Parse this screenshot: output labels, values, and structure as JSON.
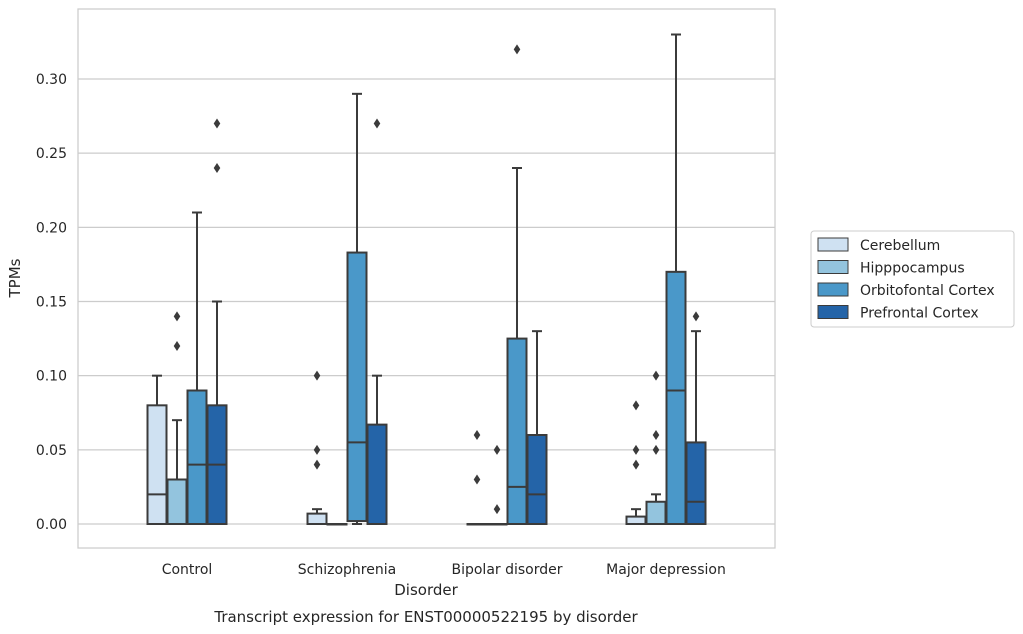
{
  "chart_data": {
    "type": "box",
    "xlabel": "Disorder",
    "ylabel": "TPMs",
    "caption": "Transcript expression for ENST00000522195 by disorder",
    "ylim": [
      -0.016,
      0.345
    ],
    "yticks": [
      "0.00",
      "0.05",
      "0.10",
      "0.15",
      "0.20",
      "0.25",
      "0.30"
    ],
    "grid": "horizontal",
    "legend_position": "right",
    "categories": [
      "Control",
      "Schizophrenia",
      "Bipolar disorder",
      "Major depression"
    ],
    "series": [
      {
        "name": "Cerebellum",
        "color": "#cfe1f2",
        "boxes": [
          {
            "low": 0.0,
            "q1": 0.0,
            "median": 0.02,
            "q3": 0.08,
            "high": 0.1,
            "outliers": []
          },
          {
            "low": 0.0,
            "q1": 0.0,
            "median": 0.0,
            "q3": 0.007,
            "high": 0.01,
            "outliers": [
              0.04,
              0.05,
              0.1
            ]
          },
          {
            "low": 0.0,
            "q1": 0.0,
            "median": 0.0,
            "q3": 0.0,
            "high": 0.0,
            "outliers": [
              0.03,
              0.06
            ]
          },
          {
            "low": 0.0,
            "q1": 0.0,
            "median": 0.0,
            "q3": 0.005,
            "high": 0.01,
            "outliers": [
              0.04,
              0.05,
              0.08
            ]
          }
        ]
      },
      {
        "name": "Hipppocampus",
        "color": "#93c4de",
        "boxes": [
          {
            "low": 0.0,
            "q1": 0.0,
            "median": 0.0,
            "q3": 0.03,
            "high": 0.07,
            "outliers": [
              0.12,
              0.14
            ]
          },
          {
            "low": 0.0,
            "q1": 0.0,
            "median": 0.0,
            "q3": 0.0,
            "high": 0.0,
            "outliers": []
          },
          {
            "low": 0.0,
            "q1": 0.0,
            "median": 0.0,
            "q3": 0.0,
            "high": 0.0,
            "outliers": [
              0.01,
              0.05
            ]
          },
          {
            "low": 0.0,
            "q1": 0.0,
            "median": 0.0,
            "q3": 0.015,
            "high": 0.02,
            "outliers": [
              0.05,
              0.06,
              0.1
            ]
          }
        ]
      },
      {
        "name": "Orbitofontal Cortex",
        "color": "#4a98c9",
        "boxes": [
          {
            "low": 0.0,
            "q1": 0.0,
            "median": 0.04,
            "q3": 0.09,
            "high": 0.21,
            "outliers": []
          },
          {
            "low": 0.0,
            "q1": 0.002,
            "median": 0.055,
            "q3": 0.183,
            "high": 0.29,
            "outliers": []
          },
          {
            "low": 0.0,
            "q1": 0.0,
            "median": 0.025,
            "q3": 0.125,
            "high": 0.24,
            "outliers": [
              0.32
            ]
          },
          {
            "low": 0.0,
            "q1": 0.0,
            "median": 0.09,
            "q3": 0.17,
            "high": 0.33,
            "outliers": []
          }
        ]
      },
      {
        "name": "Prefrontal Cortex",
        "color": "#2464a8",
        "boxes": [
          {
            "low": 0.0,
            "q1": 0.0,
            "median": 0.04,
            "q3": 0.08,
            "high": 0.15,
            "outliers": [
              0.24,
              0.27
            ]
          },
          {
            "low": 0.0,
            "q1": 0.0,
            "median": 0.0,
            "q3": 0.067,
            "high": 0.1,
            "outliers": [
              0.27
            ]
          },
          {
            "low": 0.0,
            "q1": 0.0,
            "median": 0.02,
            "q3": 0.06,
            "high": 0.13,
            "outliers": []
          },
          {
            "low": 0.0,
            "q1": 0.0,
            "median": 0.015,
            "q3": 0.055,
            "high": 0.13,
            "outliers": [
              0.14
            ]
          }
        ]
      }
    ]
  }
}
